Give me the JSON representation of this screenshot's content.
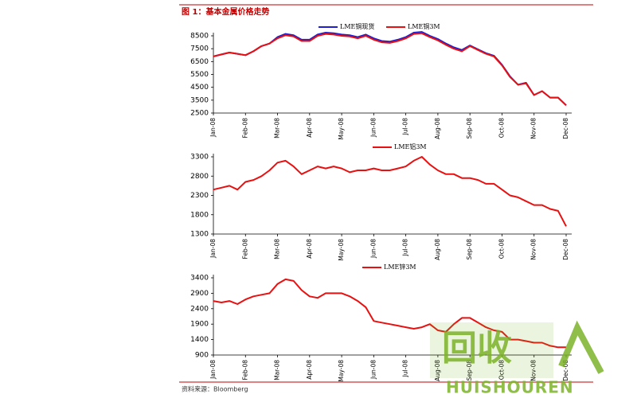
{
  "header": {
    "title": "图 1：基本金属价格走势"
  },
  "footer": {
    "source": "资料来源：Bloomberg"
  },
  "watermark": {
    "text": "回收",
    "subtext": "HUISHOUREN"
  },
  "chart_data": [
    {
      "type": "line",
      "categories": [
        "Jan-08",
        null,
        null,
        null,
        "Feb-08",
        null,
        null,
        null,
        "Mar-08",
        null,
        null,
        null,
        "Apr-08",
        null,
        null,
        null,
        "May-08",
        null,
        null,
        null,
        "Jun-08",
        null,
        null,
        null,
        "Jul-08",
        null,
        null,
        null,
        "Aug-08",
        null,
        null,
        null,
        "Sep-08",
        null,
        null,
        null,
        "Oct-08",
        null,
        null,
        null,
        "Nov-08",
        null,
        null,
        null,
        "Dec-08"
      ],
      "ylim": [
        2500,
        8500
      ],
      "yticks": [
        2500,
        3500,
        4500,
        5500,
        6500,
        7500,
        8500
      ],
      "series": [
        {
          "name": "LME铜现货",
          "color": "#1f1fd0",
          "values": [
            6900,
            7050,
            7200,
            7100,
            7000,
            7300,
            7700,
            7900,
            8400,
            8650,
            8550,
            8200,
            8200,
            8600,
            8750,
            8700,
            8600,
            8550,
            8400,
            8600,
            8300,
            8100,
            8050,
            8200,
            8400,
            8750,
            8800,
            8500,
            8250,
            7900,
            7600,
            7400,
            7750,
            7450,
            7150,
            6950,
            6250,
            5350,
            4700,
            4850,
            3900,
            4200,
            3700,
            3700,
            3100
          ]
        },
        {
          "name": "LME铜3M",
          "color": "#e81010",
          "values": [
            6900,
            7050,
            7200,
            7100,
            7000,
            7300,
            7700,
            7900,
            8300,
            8550,
            8450,
            8100,
            8100,
            8500,
            8650,
            8600,
            8500,
            8450,
            8300,
            8500,
            8200,
            8000,
            7950,
            8100,
            8300,
            8650,
            8700,
            8400,
            8150,
            7800,
            7500,
            7300,
            7700,
            7400,
            7100,
            6900,
            6200,
            5300,
            4700,
            4800,
            3900,
            4200,
            3700,
            3700,
            3100
          ]
        }
      ]
    },
    {
      "type": "line",
      "categories": [
        "Jan-08",
        null,
        null,
        null,
        "Feb-08",
        null,
        null,
        null,
        "Mar-08",
        null,
        null,
        null,
        "Apr-08",
        null,
        null,
        null,
        "May-08",
        null,
        null,
        null,
        "Jun-08",
        null,
        null,
        null,
        "Jul-08",
        null,
        null,
        null,
        "Aug-08",
        null,
        null,
        null,
        "Sep-08",
        null,
        null,
        null,
        "Oct-08",
        null,
        null,
        null,
        "Nov-08",
        null,
        null,
        null,
        "Dec-08"
      ],
      "ylim": [
        1300,
        3300
      ],
      "yticks": [
        1300,
        1800,
        2300,
        2800,
        3300
      ],
      "series": [
        {
          "name": "LME铝3M",
          "color": "#e81010",
          "values": [
            2450,
            2500,
            2550,
            2450,
            2650,
            2700,
            2800,
            2950,
            3150,
            3200,
            3050,
            2850,
            2950,
            3050,
            3000,
            3050,
            3000,
            2900,
            2950,
            2950,
            3000,
            2950,
            2950,
            3000,
            3050,
            3200,
            3300,
            3100,
            2950,
            2850,
            2850,
            2750,
            2750,
            2700,
            2600,
            2600,
            2450,
            2300,
            2250,
            2150,
            2050,
            2050,
            1950,
            1900,
            1500
          ]
        }
      ]
    },
    {
      "type": "line",
      "categories": [
        "Jan-08",
        null,
        null,
        null,
        "Feb-08",
        null,
        null,
        null,
        "Mar-08",
        null,
        null,
        null,
        "Apr-08",
        null,
        null,
        null,
        "May-08",
        null,
        null,
        null,
        "Jun-08",
        null,
        null,
        null,
        "Jul-08",
        null,
        null,
        null,
        "Aug-08",
        null,
        null,
        null,
        "Sep-08",
        null,
        null,
        null,
        "Oct-08",
        null,
        null,
        null,
        "Nov-08",
        null,
        null,
        null,
        "Dec-08"
      ],
      "ylim": [
        900,
        3400
      ],
      "yticks": [
        900,
        1400,
        1900,
        2400,
        2900,
        3400
      ],
      "series": [
        {
          "name": "LME锌3M",
          "color": "#e81010",
          "values": [
            2650,
            2600,
            2650,
            2550,
            2700,
            2800,
            2850,
            2900,
            3200,
            3350,
            3300,
            3000,
            2800,
            2750,
            2900,
            2900,
            2900,
            2800,
            2650,
            2450,
            2000,
            1950,
            1900,
            1850,
            1800,
            1750,
            1800,
            1900,
            1700,
            1650,
            1900,
            2100,
            2100,
            1950,
            1800,
            1700,
            1650,
            1400,
            1400,
            1350,
            1300,
            1300,
            1200,
            1150,
            1150
          ]
        }
      ]
    }
  ]
}
